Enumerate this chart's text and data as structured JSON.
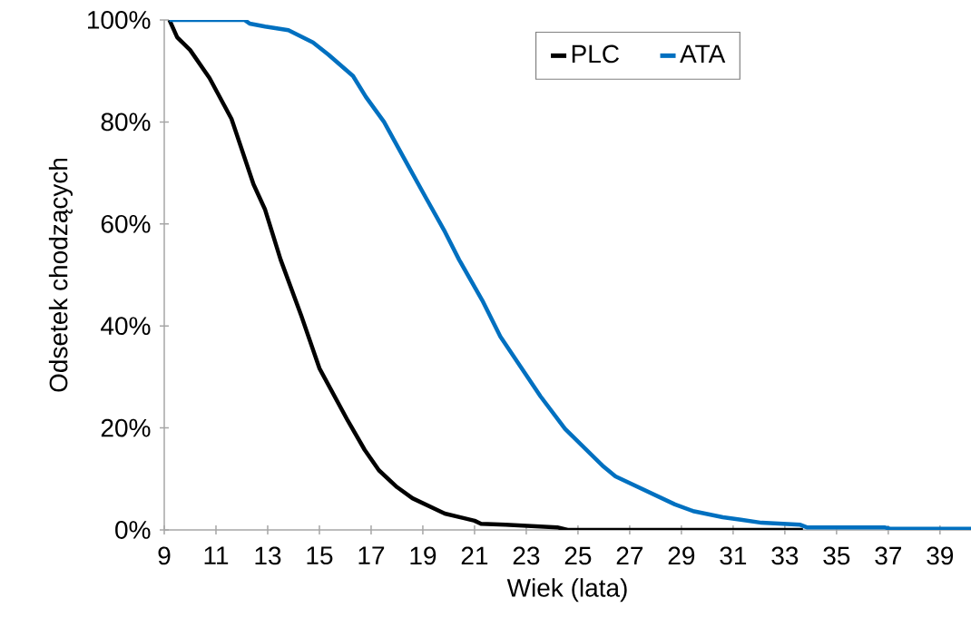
{
  "chart_data": {
    "type": "line",
    "xlabel": "Wiek (lata)",
    "ylabel": "Odsetek chodzących",
    "xlim": [
      9,
      40.2
    ],
    "ylim": [
      0,
      100
    ],
    "xticks": [
      9,
      11,
      13,
      15,
      17,
      19,
      21,
      23,
      25,
      27,
      29,
      31,
      33,
      35,
      37,
      39
    ],
    "yticks": [
      {
        "value": 0,
        "label": "0%"
      },
      {
        "value": 20,
        "label": "20%"
      },
      {
        "value": 40,
        "label": "40%"
      },
      {
        "value": 60,
        "label": "60%"
      },
      {
        "value": 80,
        "label": "80%"
      },
      {
        "value": 100,
        "label": "100%"
      }
    ],
    "grid": false,
    "legend": "top right",
    "series": [
      {
        "name": "PLC",
        "color": "#000000",
        "x": [
          9.2,
          9.5,
          10.0,
          10.75,
          11.6,
          12.45,
          12.9,
          13.5,
          14.3,
          15.0,
          16.1,
          16.75,
          17.3,
          18.0,
          18.6,
          19.85,
          21.0,
          21.25,
          22.2,
          24.2,
          24.6,
          33.7
        ],
        "values": [
          100,
          96.6,
          94.1,
          88.6,
          80.6,
          67.8,
          62.8,
          53,
          42,
          31.7,
          21.4,
          15.7,
          11.7,
          8.4,
          6.2,
          3.2,
          1.8,
          1.2,
          1.0,
          0.5,
          0,
          0
        ]
      },
      {
        "name": "ATA",
        "color": "#0070c0",
        "x": [
          9.2,
          12.1,
          12.3,
          12.9,
          13.8,
          14.75,
          15.35,
          16.3,
          16.8,
          17.5,
          17.9,
          18.5,
          19.1,
          19.85,
          20.4,
          21.3,
          22.0,
          23.55,
          24.5,
          25.95,
          26.45,
          28.75,
          29.45,
          30.6,
          31.3,
          32.1,
          33.6,
          33.85,
          36.85,
          37.1,
          40.2
        ],
        "values": [
          100,
          100,
          99.3,
          98.7,
          98,
          95.6,
          93.2,
          89,
          84.9,
          80,
          76.3,
          70.8,
          65.3,
          58.5,
          53,
          45,
          37.9,
          26.2,
          19.8,
          12.6,
          10.5,
          5.0,
          3.7,
          2.5,
          2.0,
          1.4,
          1.0,
          0.5,
          0.5,
          0.2,
          0.2
        ]
      }
    ]
  }
}
